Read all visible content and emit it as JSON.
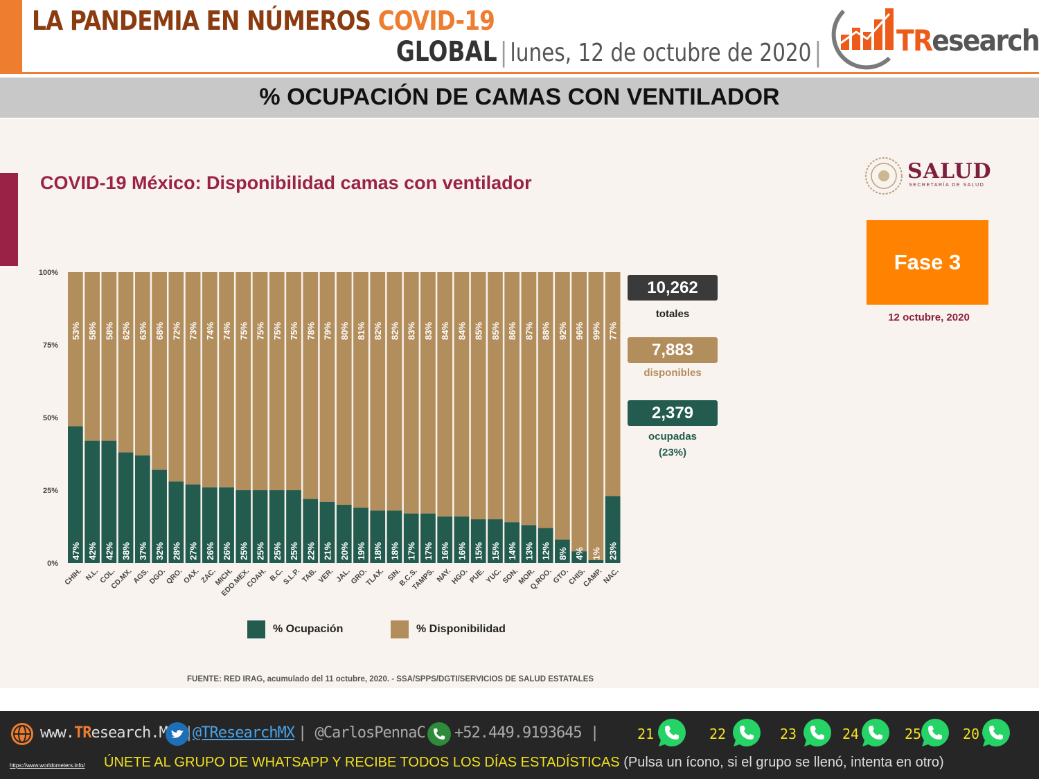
{
  "header": {
    "title_main": "LA PANDEMIA EN NÚMEROS",
    "title_accent": "COVID-19",
    "scope": "GLOBAL",
    "separator": "|",
    "date": "lunes, 12 de octubre de 2020",
    "date_suffix": "|",
    "logo_text_accent": "TR",
    "logo_text_rest": "esearch"
  },
  "banner": {
    "title": "% OCUPACIÓN DE CAMAS CON VENTILADOR"
  },
  "slide": {
    "title": "COVID-19 México: Disponibilidad camas con ventilador",
    "salud_word": "SALUD",
    "salud_small": "SECRETARÍA DE SALUD",
    "phase": "Fase 3",
    "phase_date": "12 octubre, 2020",
    "stats": {
      "total_value": "10,262",
      "total_label": "totales",
      "available_value": "7,883",
      "available_label": "disponibles",
      "occupied_value": "2,379",
      "occupied_label": "ocupadas",
      "occupied_pct": "(23%)"
    },
    "source": "FUENTE: RED IRAG, acumulado del 11 octubre, 2020. -  SSA/SPPS/DGTI/SERVICIOS DE SALUD ESTATALES",
    "colors": {
      "occupied": "#235b4e",
      "available": "#b38e5d",
      "salud": "#9b2247",
      "phase": "#ff8200",
      "total_box": "#3a3a3a"
    }
  },
  "chart_data": {
    "type": "bar",
    "stacked": true,
    "title": "COVID-19 México: Disponibilidad camas con ventilador",
    "categories": [
      "CHIH.",
      "N.L.",
      "COL.",
      "CD.MX.",
      "AGS.",
      "DGO.",
      "QRO.",
      "OAX.",
      "ZAC.",
      "MICH.",
      "EDO.MEX.",
      "COAH.",
      "B.C.",
      "S.L.P.",
      "TAB.",
      "VER.",
      "JAL.",
      "GRO.",
      "TLAX.",
      "SIN.",
      "B.C.S.",
      "TAMPS.",
      "NAY.",
      "HGO.",
      "PUE.",
      "YUC.",
      "SON.",
      "MOR.",
      "Q.ROO.",
      "GTO.",
      "CHIS.",
      "CAMP.",
      "NAC."
    ],
    "series": [
      {
        "name": "% Ocupación",
        "values": [
          47,
          42,
          42,
          38,
          37,
          32,
          28,
          27,
          26,
          26,
          25,
          25,
          25,
          25,
          22,
          21,
          20,
          19,
          18,
          18,
          17,
          17,
          16,
          16,
          15,
          15,
          14,
          13,
          12,
          8,
          4,
          1,
          23
        ]
      },
      {
        "name": "% Disponibilidad",
        "values": [
          53,
          58,
          58,
          62,
          63,
          68,
          72,
          73,
          74,
          74,
          75,
          75,
          75,
          75,
          78,
          79,
          80,
          81,
          82,
          82,
          83,
          83,
          84,
          84,
          85,
          85,
          86,
          87,
          88,
          92,
          96,
          99,
          77
        ]
      }
    ],
    "yticks": [
      "100%",
      "75%",
      "50%",
      "25%",
      "0%"
    ],
    "ylim": [
      0,
      100
    ],
    "legend": "bottom"
  },
  "footer": {
    "website_prefix": "www.",
    "website_accent": "TR",
    "website_rest": "esearch.Mx",
    "sep": "|",
    "twitter": "@TResearchMX",
    "personal": "@CarlosPennaC",
    "phone": "+52.449.9193645",
    "whatsapp_groups": [
      "21",
      "22",
      "23",
      "24",
      "25",
      "20"
    ],
    "url": "https://www.worldometers.info/",
    "cta": "ÚNETE AL GRUPO DE WHATSAPP Y RECIBE TODOS LOS DÍAS ESTADÍSTICAS",
    "cta_note": "(Pulsa un ícono, si el grupo se llenó, intenta en otro)"
  }
}
